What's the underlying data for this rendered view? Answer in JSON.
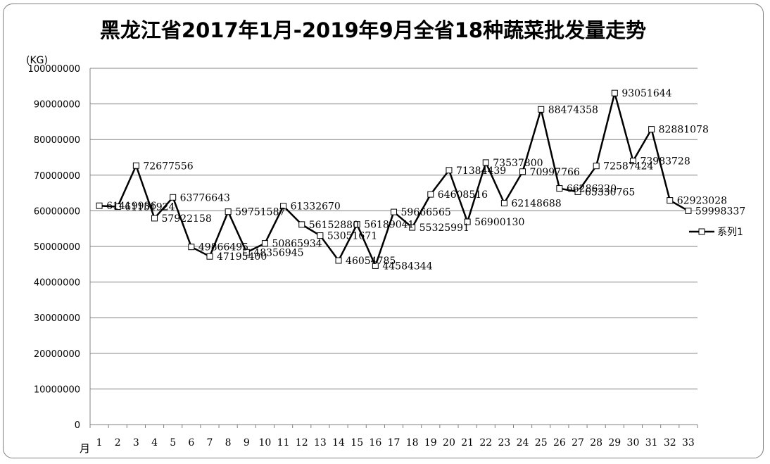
{
  "chart_data": {
    "type": "line",
    "title": "黑龙江省2017年1月-2019年9月全省18种蔬菜批发量走势",
    "ylabel": "(KG)",
    "xlabel": "月",
    "ylim": [
      0,
      100000000
    ],
    "y_ticks": [
      "0",
      "10000000",
      "20000000",
      "30000000",
      "40000000",
      "50000000",
      "60000000",
      "70000000",
      "80000000",
      "90000000",
      "100000000"
    ],
    "categories": [
      "1",
      "2",
      "3",
      "4",
      "5",
      "6",
      "7",
      "8",
      "9",
      "10",
      "11",
      "12",
      "13",
      "14",
      "15",
      "16",
      "17",
      "18",
      "19",
      "20",
      "21",
      "22",
      "23",
      "24",
      "25",
      "26",
      "27",
      "28",
      "29",
      "30",
      "31",
      "32",
      "33"
    ],
    "series": [
      {
        "name": "系列1",
        "values": [
          61419986,
          61151924,
          72677556,
          57922158,
          63776643,
          49866495,
          47195400,
          59751587,
          48356945,
          50865934,
          61332670,
          56152880,
          53051671,
          46054785,
          56189041,
          44584344,
          59666565,
          55325991,
          64608516,
          71384439,
          56900130,
          73537800,
          62148688,
          70997766,
          88474358,
          66286220,
          65330765,
          72587424,
          93051644,
          73983728,
          82881078,
          62923028,
          59998337
        ],
        "labels": [
          "61419986",
          "61151924",
          "72677556",
          "57922158",
          "63776643",
          "49866495",
          "47195400",
          "59751587",
          "48356945",
          "50865934",
          "61332670",
          "56152880",
          "53051671",
          "46054785",
          "56189041",
          "44584344",
          "59666565",
          "55325991",
          "64608516",
          "71384439",
          "56900130",
          "73537800",
          "62148688",
          "70997766",
          "88474358",
          "66286220",
          "65330765",
          "72587424",
          "93051644",
          "73983728",
          "82881078",
          "62923028",
          "59998337"
        ]
      }
    ],
    "grid": true,
    "legend": "right",
    "colors": {
      "line": "#000000",
      "marker_fill": "#ffffff",
      "grid": "#808080"
    }
  }
}
